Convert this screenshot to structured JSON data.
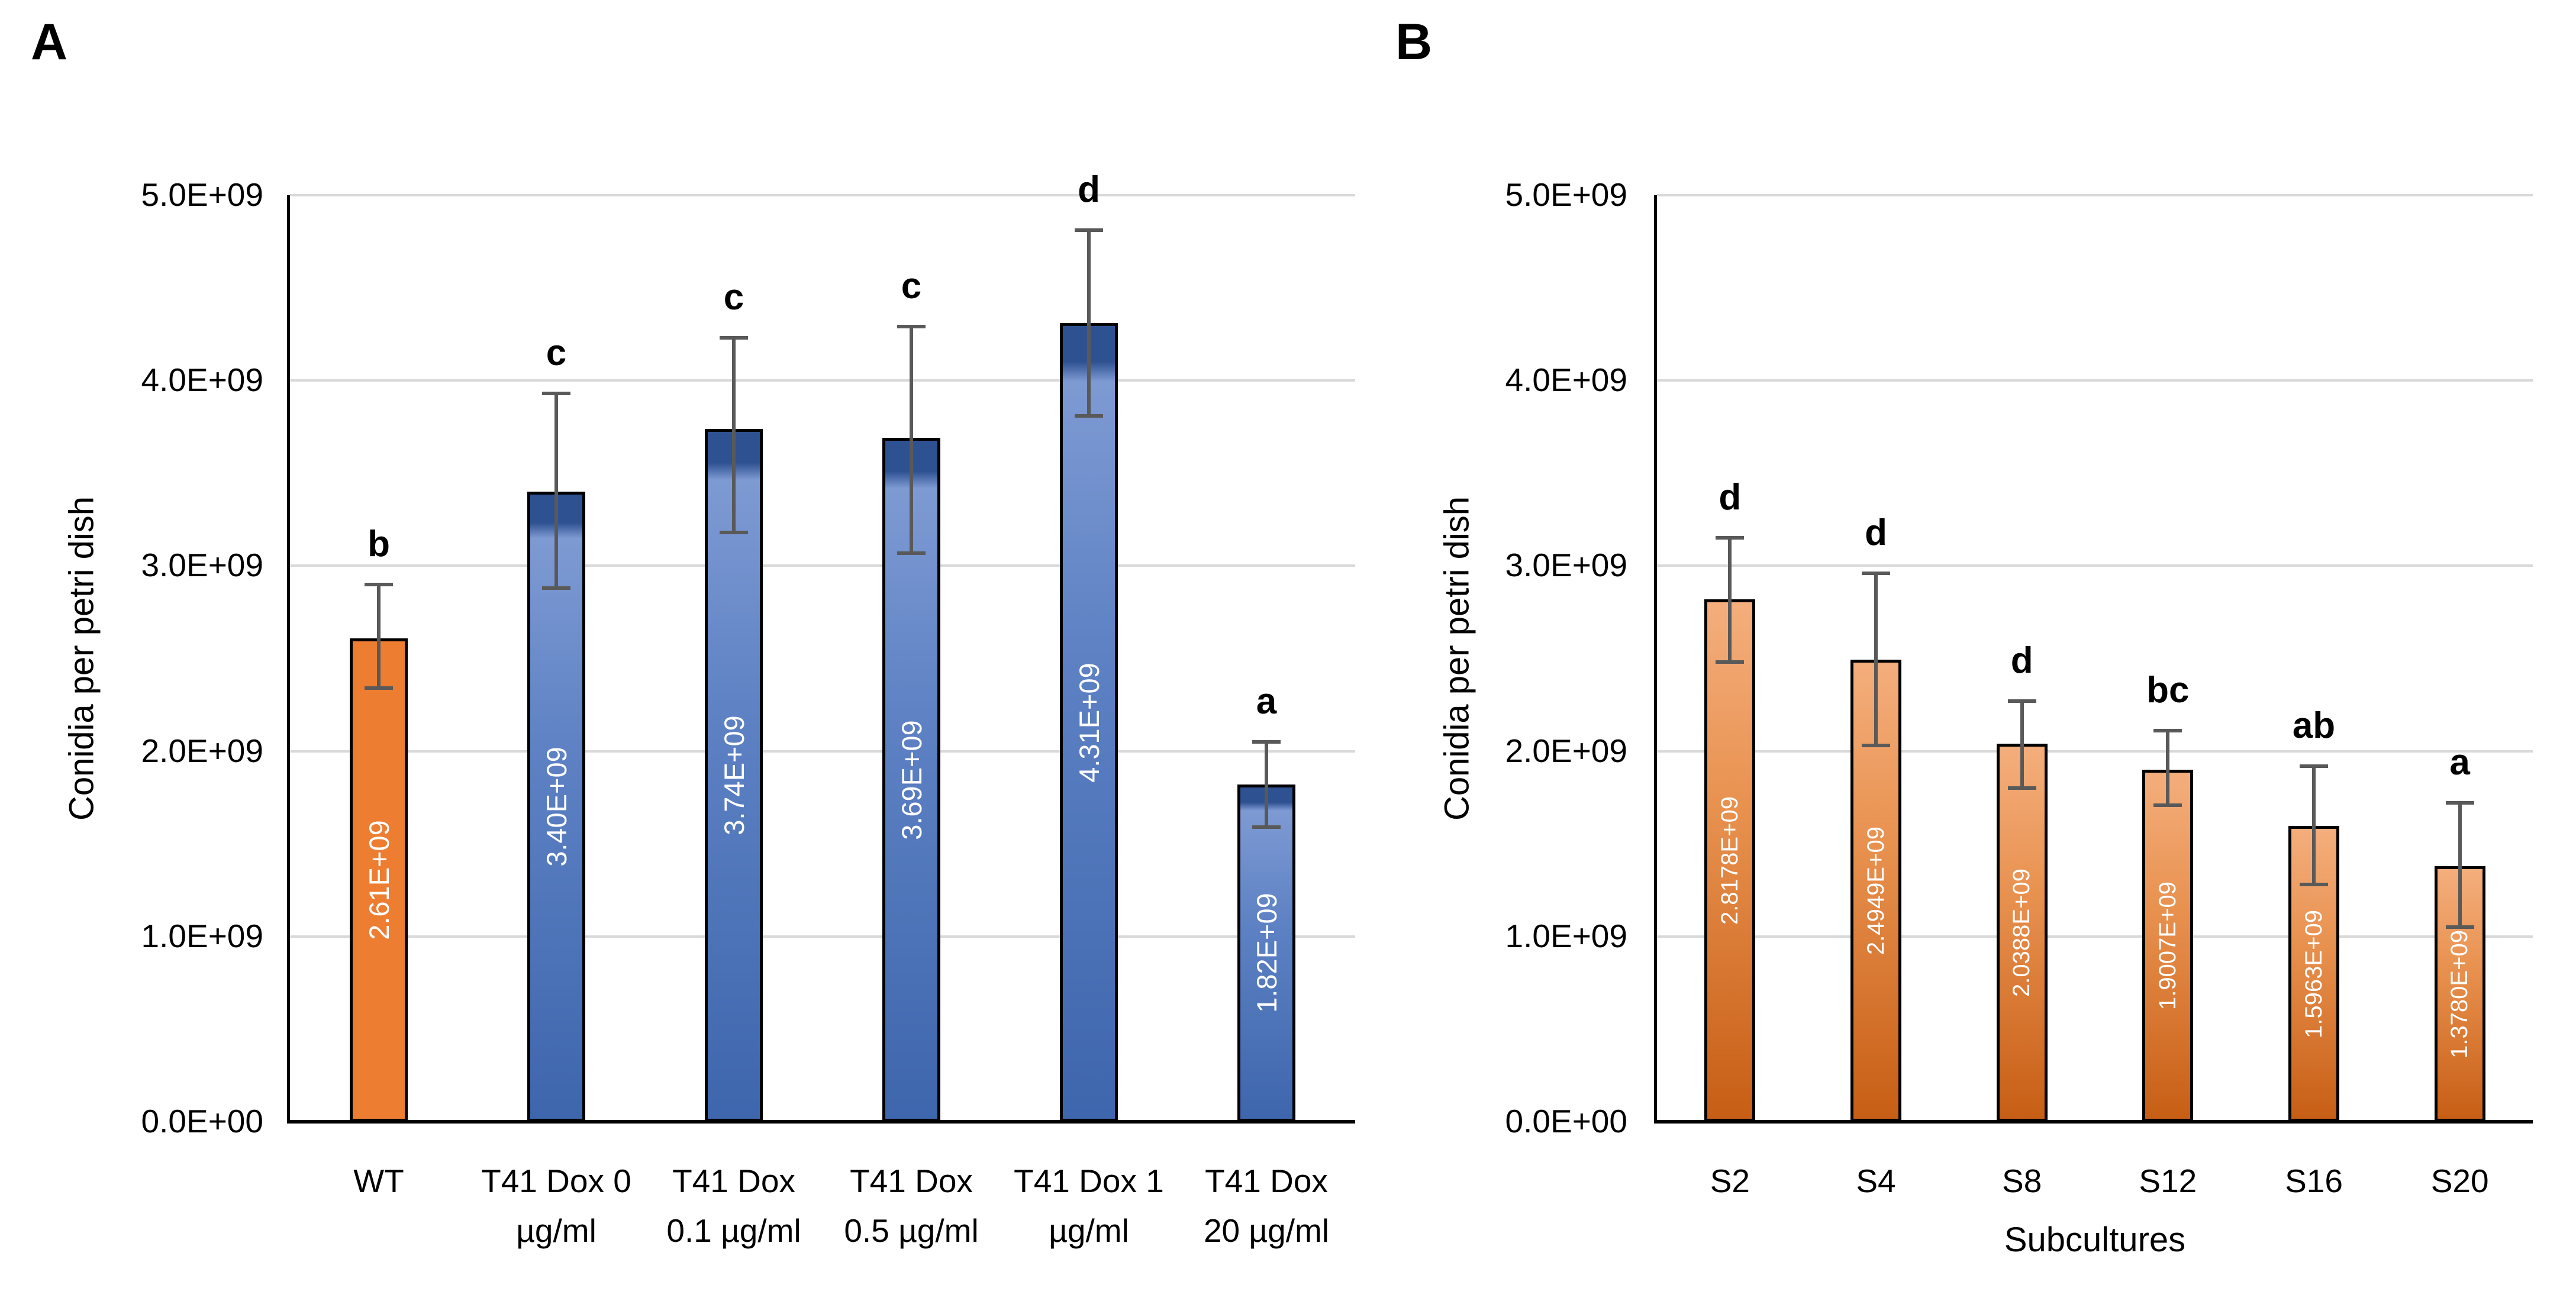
{
  "figure_title": "",
  "panels": [
    {
      "label": "A",
      "y_axis_title": "Conidia per petri dish",
      "x_axis_title": "",
      "y_ticks": [
        "0.0E+00",
        "1.0E+09",
        "2.0E+09",
        "3.0E+09",
        "4.0E+09",
        "5.0E+09"
      ]
    },
    {
      "label": "B",
      "y_axis_title": "Conidia per petri dish",
      "x_axis_title": "Subcultures",
      "y_ticks": [
        "0.0E+00",
        "1.0E+09",
        "2.0E+09",
        "3.0E+09",
        "4.0E+09",
        "5.0E+09"
      ]
    }
  ],
  "chart_data": [
    {
      "type": "bar",
      "panel": "A",
      "title": "",
      "xlabel": "",
      "ylabel": "Conidia per petri dish",
      "ylim": [
        0,
        5000000000.0
      ],
      "ytick_step": 1000000000.0,
      "grid": true,
      "legend": "none",
      "categories": [
        "WT",
        "T41 Dox 0\nµg/ml",
        "T41 Dox\n0.1 µg/ml",
        "T41 Dox\n0.5 µg/ml",
        "T41 Dox 1\nµg/ml",
        "T41 Dox\n20 µg/ml"
      ],
      "values": [
        2610000000.0,
        3400000000.0,
        3740000000.0,
        3690000000.0,
        4310000000.0,
        1820000000.0
      ],
      "bar_labels": [
        "2.61E+09",
        "3.40E+09",
        "3.74E+09",
        "3.69E+09",
        "4.31E+09",
        "1.82E+09"
      ],
      "sig_letters": [
        "b",
        "c",
        "c",
        "c",
        "d",
        "a"
      ],
      "error_high": [
        2910000000.0,
        3940000000.0,
        4240000000.0,
        4300000000.0,
        4820000000.0,
        2060000000.0
      ],
      "error_low": [
        2330000000.0,
        2870000000.0,
        3170000000.0,
        3060000000.0,
        3800000000.0,
        1580000000.0
      ],
      "bar_styles": [
        "solid_orange",
        "blue_gradient",
        "blue_gradient",
        "blue_gradient",
        "blue_gradient",
        "blue_gradient"
      ],
      "bar_label_font_px": 47
    },
    {
      "type": "bar",
      "panel": "B",
      "title": "",
      "xlabel": "Subcultures",
      "ylabel": "Conidia per petri dish",
      "ylim": [
        0,
        5000000000.0
      ],
      "ytick_step": 1000000000.0,
      "grid": true,
      "legend": "none",
      "categories": [
        "S2",
        "S4",
        "S8",
        "S12",
        "S16",
        "S20"
      ],
      "values": [
        2817800000.0,
        2494900000.0,
        2038800000.0,
        1900700000.0,
        1596300000.0,
        1378000000.0
      ],
      "bar_labels": [
        "2.8178E+09",
        "2.4949E+09",
        "2.0388E+09",
        "1.9007E+09",
        "1.5963E+09",
        "1.3780E+09"
      ],
      "sig_letters": [
        "d",
        "d",
        "d",
        "bc",
        "ab",
        "a"
      ],
      "error_high": [
        3160000000.0,
        2970000000.0,
        2280000000.0,
        2120000000.0,
        1930000000.0,
        1730000000.0
      ],
      "error_low": [
        2470000000.0,
        2020000000.0,
        1790000000.0,
        1700000000.0,
        1270000000.0,
        1040000000.0
      ],
      "bar_styles": [
        "orange_gradient",
        "orange_gradient",
        "orange_gradient",
        "orange_gradient",
        "orange_gradient",
        "orange_gradient"
      ],
      "bar_label_font_px": 40
    }
  ],
  "colors": {
    "orange_solid": "#ED7D31",
    "orange_grad_top": "#F4AE7C",
    "orange_grad_mid": "#E8914F",
    "orange_grad_bottom": "#C75E15",
    "blue_cap": "#2E5191",
    "blue_highlight": "#7E9AD3",
    "blue_mid": "#5E82C4",
    "blue_base": "#3E66AD",
    "error_bar": "#595959",
    "gridline": "#D9D9D9",
    "axis_line": "#000000",
    "bar_outline": "#000000",
    "bar_label_text": "#FFFFFF",
    "text": "#000000"
  }
}
